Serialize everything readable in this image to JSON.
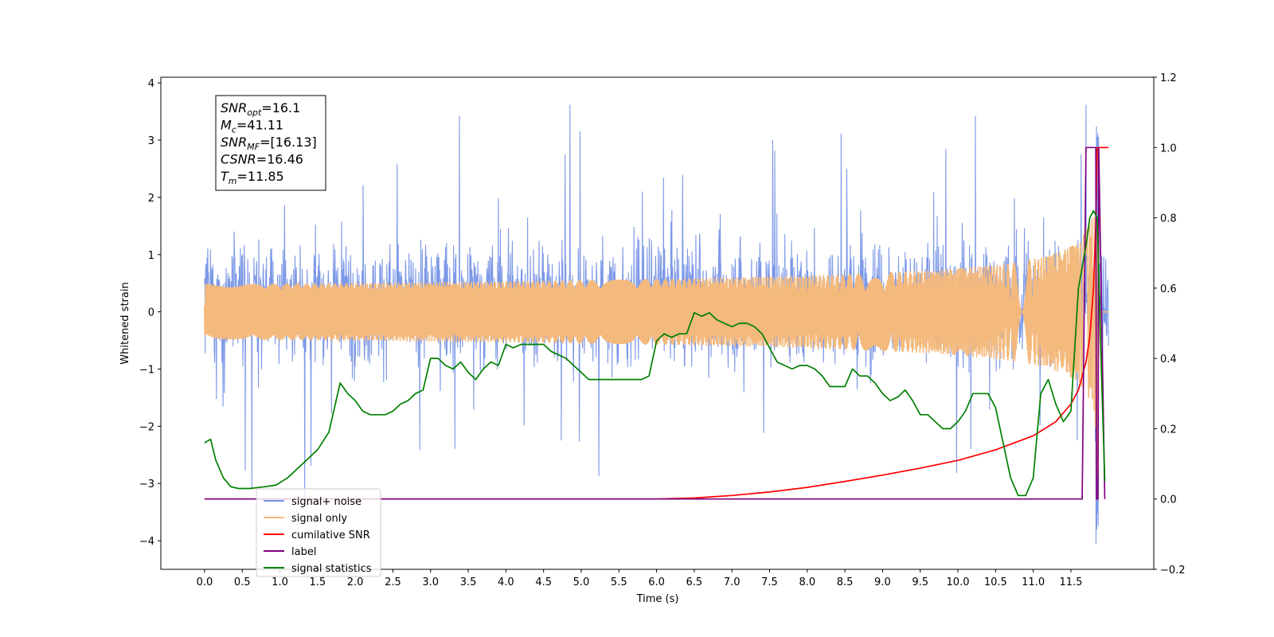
{
  "chart_data": {
    "type": "line",
    "xlabel": "Time (s)",
    "ylabel": "Whitened strain",
    "xlim": [
      -0.5805,
      12.6
    ],
    "ylim": [
      -4.5,
      4.1
    ],
    "ylim_right": [
      -0.2,
      1.2
    ],
    "x_ticks": [
      "0.0",
      "0.5",
      "1.0",
      "1.5",
      "2.0",
      "2.5",
      "3.0",
      "3.5",
      "4.0",
      "4.5",
      "5.0",
      "5.5",
      "6.0",
      "6.5",
      "7.0",
      "7.5",
      "8.0",
      "8.5",
      "9.0",
      "9.5",
      "10.0",
      "10.5",
      "11.0",
      "11.5"
    ],
    "y_ticks_left": [
      "−4",
      "−3",
      "−2",
      "−1",
      "0",
      "1",
      "2",
      "3",
      "4"
    ],
    "y_ticks_right": [
      "−0.2",
      "0.0",
      "0.2",
      "0.4",
      "0.6",
      "0.8",
      "1.0",
      "1.2"
    ],
    "legend_position": "lower-left",
    "grid": false,
    "annotation": {
      "lines": [
        {
          "var": "SNR",
          "sub": "opt",
          "value": "=16.1"
        },
        {
          "var": "M",
          "sub": "c",
          "value": "=41.11"
        },
        {
          "var": "SNR",
          "sub": "MF",
          "value": "=[16.13]"
        },
        {
          "var": "CSNR",
          "sub": "",
          "value": "=16.46"
        },
        {
          "var": "T",
          "sub": "m",
          "value": "=11.85"
        }
      ]
    },
    "series": [
      {
        "name": "signal+ noise",
        "color": "#7592e6",
        "axis": "left",
        "kind": "noise",
        "t_end": 12.0,
        "merger_t": 11.85,
        "typical_amplitude": 1.3,
        "peak_max": 3.7,
        "peak_min": -4.1
      },
      {
        "name": "signal only",
        "color": "#f4b97c",
        "axis": "left",
        "kind": "chirp",
        "t_end": 12.0,
        "merger_t": 11.85,
        "peak_max": 3.5,
        "peak_min": -3.5
      },
      {
        "name": "cumilative SNR",
        "color": "#ff0000",
        "axis": "right",
        "x": [
          0.0,
          6.0,
          6.5,
          7.0,
          7.5,
          8.0,
          8.5,
          9.0,
          9.5,
          10.0,
          10.5,
          11.0,
          11.3,
          11.5,
          11.6,
          11.7,
          11.75,
          11.8,
          11.83,
          11.85,
          12.0
        ],
        "y": [
          0.0,
          0.0,
          0.003,
          0.01,
          0.02,
          0.033,
          0.05,
          0.068,
          0.088,
          0.11,
          0.14,
          0.18,
          0.22,
          0.27,
          0.31,
          0.39,
          0.46,
          0.6,
          0.78,
          1.0,
          1.0
        ]
      },
      {
        "name": "label",
        "color": "#800080",
        "axis": "right",
        "x": [
          0.0,
          11.65,
          11.7,
          11.83,
          11.84,
          11.86,
          11.87,
          11.95
        ],
        "y": [
          0.0,
          0.0,
          1.0,
          1.0,
          0.0,
          0.0,
          1.0,
          0.0
        ]
      },
      {
        "name": "signal statistics",
        "color": "#008000",
        "axis": "right",
        "x": [
          0.0,
          0.08,
          0.15,
          0.25,
          0.35,
          0.45,
          0.6,
          0.8,
          0.95,
          1.1,
          1.3,
          1.5,
          1.65,
          1.8,
          1.9,
          2.0,
          2.1,
          2.2,
          2.4,
          2.5,
          2.6,
          2.7,
          2.8,
          2.9,
          3.0,
          3.1,
          3.2,
          3.3,
          3.4,
          3.5,
          3.6,
          3.7,
          3.8,
          3.9,
          4.0,
          4.1,
          4.2,
          4.3,
          4.4,
          4.5,
          4.6,
          4.7,
          4.8,
          4.9,
          5.0,
          5.1,
          5.2,
          5.3,
          5.4,
          5.5,
          5.6,
          5.7,
          5.8,
          5.9,
          6.0,
          6.1,
          6.2,
          6.3,
          6.4,
          6.5,
          6.6,
          6.7,
          6.8,
          6.9,
          7.0,
          7.1,
          7.2,
          7.3,
          7.4,
          7.5,
          7.6,
          7.7,
          7.8,
          7.9,
          8.0,
          8.1,
          8.2,
          8.3,
          8.4,
          8.5,
          8.6,
          8.7,
          8.8,
          8.9,
          9.0,
          9.1,
          9.2,
          9.3,
          9.4,
          9.5,
          9.6,
          9.7,
          9.8,
          9.9,
          10.0,
          10.1,
          10.2,
          10.3,
          10.4,
          10.5,
          10.6,
          10.7,
          10.8,
          10.9,
          11.0,
          11.1,
          11.2,
          11.3,
          11.4,
          11.5,
          11.6,
          11.7,
          11.75,
          11.8,
          11.85,
          11.9,
          11.95
        ],
        "y": [
          0.16,
          0.17,
          0.11,
          0.06,
          0.035,
          0.03,
          0.03,
          0.035,
          0.04,
          0.06,
          0.1,
          0.14,
          0.19,
          0.33,
          0.3,
          0.28,
          0.25,
          0.24,
          0.24,
          0.25,
          0.27,
          0.28,
          0.3,
          0.31,
          0.4,
          0.4,
          0.38,
          0.37,
          0.39,
          0.36,
          0.34,
          0.37,
          0.39,
          0.38,
          0.44,
          0.43,
          0.44,
          0.44,
          0.44,
          0.44,
          0.42,
          0.41,
          0.4,
          0.38,
          0.36,
          0.34,
          0.34,
          0.34,
          0.34,
          0.34,
          0.34,
          0.34,
          0.34,
          0.35,
          0.45,
          0.47,
          0.46,
          0.47,
          0.47,
          0.53,
          0.52,
          0.53,
          0.51,
          0.5,
          0.49,
          0.5,
          0.5,
          0.49,
          0.47,
          0.43,
          0.39,
          0.38,
          0.37,
          0.38,
          0.38,
          0.37,
          0.35,
          0.32,
          0.32,
          0.32,
          0.37,
          0.35,
          0.35,
          0.33,
          0.3,
          0.28,
          0.29,
          0.31,
          0.28,
          0.24,
          0.24,
          0.22,
          0.2,
          0.2,
          0.22,
          0.25,
          0.3,
          0.3,
          0.3,
          0.26,
          0.16,
          0.06,
          0.01,
          0.01,
          0.06,
          0.3,
          0.34,
          0.27,
          0.22,
          0.25,
          0.6,
          0.72,
          0.8,
          0.82,
          0.8,
          0.4,
          0.05
        ]
      }
    ]
  }
}
